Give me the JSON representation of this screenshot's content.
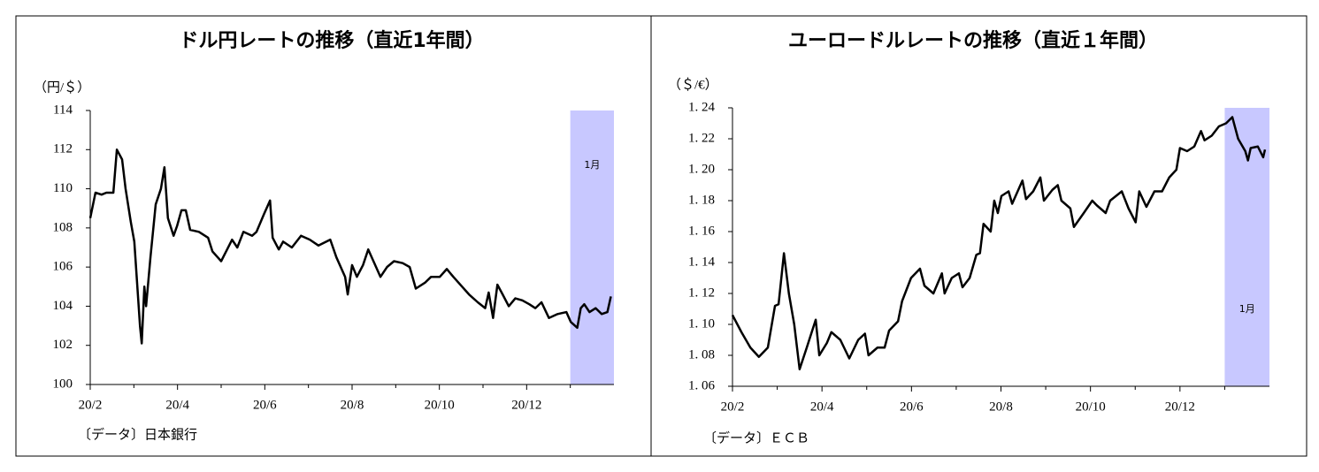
{
  "chart_data": [
    {
      "type": "line",
      "title": "ドル円レートの推移（直近1年間）",
      "y_label": "（円/＄）",
      "source": "〔データ〕日本銀行",
      "x": [
        0,
        0.12,
        0.26,
        0.37,
        0.53,
        0.61,
        0.73,
        0.81,
        0.93,
        1.01,
        1.14,
        1.18,
        1.24,
        1.28,
        1.38,
        1.5,
        1.62,
        1.7,
        1.78,
        1.91,
        1.99,
        2.09,
        2.19,
        2.29,
        2.49,
        2.7,
        2.8,
        3,
        3.25,
        3.37,
        3.51,
        3.71,
        3.81,
        3.98,
        4.12,
        4.18,
        4.32,
        4.42,
        4.62,
        4.83,
        5.03,
        5.23,
        5.5,
        5.64,
        5.84,
        5.9,
        6,
        6.11,
        6.25,
        6.37,
        6.51,
        6.65,
        6.8,
        6.96,
        7.16,
        7.32,
        7.46,
        7.67,
        7.81,
        8.01,
        8.17,
        8.32,
        8.48,
        8.68,
        8.88,
        9.05,
        9.13,
        9.23,
        9.33,
        9.45,
        9.59,
        9.74,
        9.9,
        10.06,
        10.2,
        10.34,
        10.51,
        10.71,
        10.91,
        11.01,
        11.16,
        11.24,
        11.32,
        11.44,
        11.58,
        11.72,
        11.85,
        11.93
      ],
      "series": [
        {
          "color": "#000000",
          "values": [
            108.5,
            109.8,
            109.7,
            109.8,
            109.8,
            112,
            111.5,
            110,
            108.3,
            107.3,
            103,
            102.1,
            105,
            104,
            106.5,
            109.2,
            110,
            111.1,
            108.5,
            107.6,
            108.1,
            108.9,
            108.9,
            107.9,
            107.8,
            107.5,
            106.8,
            106.3,
            107.4,
            107,
            107.8,
            107.6,
            107.8,
            108.7,
            109.4,
            107.5,
            106.9,
            107.3,
            107,
            107.6,
            107.4,
            107.1,
            107.4,
            106.5,
            105.5,
            104.6,
            106.1,
            105.5,
            106.1,
            106.9,
            106.2,
            105.5,
            106,
            106.3,
            106.2,
            106,
            104.9,
            105.2,
            105.5,
            105.5,
            105.9,
            105.5,
            105.1,
            104.6,
            104.2,
            103.9,
            104.7,
            103.4,
            105.1,
            104.6,
            104,
            104.4,
            104.3,
            104.1,
            103.9,
            104.2,
            103.4,
            103.6,
            103.7,
            103.2,
            102.9,
            103.9,
            104.1,
            103.7,
            103.9,
            103.6,
            103.7,
            104.5
          ]
        }
      ],
      "xlim": [
        0,
        12
      ],
      "xticks": [
        {
          "value": 0,
          "label": "20/2"
        },
        {
          "value": 2,
          "label": "20/4"
        },
        {
          "value": 4,
          "label": "20/6"
        },
        {
          "value": 6,
          "label": "20/8"
        },
        {
          "value": 8,
          "label": "20/10"
        },
        {
          "value": 10,
          "label": "20/12"
        }
      ],
      "minor_xticks": [
        1,
        3,
        5,
        7,
        9,
        11
      ],
      "ylim": [
        100,
        114
      ],
      "yticks": [
        100,
        102,
        104,
        106,
        108,
        110,
        112,
        114
      ],
      "highlight": {
        "x": [
          11,
          12
        ],
        "label": "1月",
        "color": "#c8c8ff"
      }
    },
    {
      "type": "line",
      "title": "ユーロードルレートの推移（直近１年間）",
      "y_label": "（＄/€）",
      "source": "〔データ〕ＥＣＢ",
      "x": [
        0,
        0.2,
        0.4,
        0.59,
        0.79,
        0.95,
        1.03,
        1.15,
        1.26,
        1.38,
        1.5,
        1.66,
        1.86,
        1.94,
        2.11,
        2.21,
        2.41,
        2.61,
        2.81,
        2.96,
        3.04,
        3.24,
        3.4,
        3.5,
        3.7,
        3.79,
        3.99,
        4.19,
        4.29,
        4.49,
        4.68,
        4.74,
        4.9,
        5.06,
        5.14,
        5.3,
        5.45,
        5.53,
        5.61,
        5.77,
        5.85,
        5.93,
        6.01,
        6.17,
        6.25,
        6.48,
        6.56,
        6.72,
        6.88,
        6.96,
        7.15,
        7.27,
        7.35,
        7.55,
        7.63,
        7.85,
        8.04,
        8.14,
        8.34,
        8.44,
        8.7,
        8.85,
        9.01,
        9.09,
        9.25,
        9.43,
        9.6,
        9.76,
        9.92,
        10,
        10.16,
        10.32,
        10.47,
        10.55,
        10.71,
        10.87,
        11.03,
        11.17,
        11.3,
        11.46,
        11.52,
        11.58,
        11.74,
        11.86,
        11.9
      ],
      "series": [
        {
          "color": "#000000",
          "values": [
            1.106,
            1.095,
            1.085,
            1.079,
            1.085,
            1.112,
            1.113,
            1.146,
            1.12,
            1.1,
            1.071,
            1.085,
            1.103,
            1.08,
            1.088,
            1.095,
            1.09,
            1.078,
            1.09,
            1.094,
            1.08,
            1.085,
            1.085,
            1.096,
            1.102,
            1.115,
            1.13,
            1.136,
            1.125,
            1.12,
            1.133,
            1.12,
            1.13,
            1.133,
            1.124,
            1.13,
            1.145,
            1.146,
            1.165,
            1.16,
            1.18,
            1.172,
            1.183,
            1.186,
            1.178,
            1.193,
            1.181,
            1.186,
            1.195,
            1.18,
            1.187,
            1.19,
            1.18,
            1.175,
            1.163,
            1.172,
            1.18,
            1.177,
            1.172,
            1.18,
            1.186,
            1.175,
            1.166,
            1.186,
            1.176,
            1.186,
            1.186,
            1.195,
            1.2,
            1.214,
            1.212,
            1.215,
            1.225,
            1.219,
            1.222,
            1.228,
            1.23,
            1.234,
            1.22,
            1.212,
            1.206,
            1.214,
            1.215,
            1.208,
            1.213
          ]
        }
      ],
      "xlim": [
        0,
        12
      ],
      "xticks": [
        {
          "value": 0,
          "label": "20/2"
        },
        {
          "value": 2,
          "label": "20/4"
        },
        {
          "value": 4,
          "label": "20/6"
        },
        {
          "value": 6,
          "label": "20/8"
        },
        {
          "value": 8,
          "label": "20/10"
        },
        {
          "value": 10,
          "label": "20/12"
        }
      ],
      "minor_xticks": [
        1,
        3,
        5,
        7,
        9,
        11
      ],
      "ylim": [
        1.06,
        1.24
      ],
      "yticks": [
        {
          "value": 1.06,
          "label": "1. 06"
        },
        {
          "value": 1.08,
          "label": "1. 08"
        },
        {
          "value": 1.1,
          "label": "1. 10"
        },
        {
          "value": 1.12,
          "label": "1. 12"
        },
        {
          "value": 1.14,
          "label": "1. 14"
        },
        {
          "value": 1.16,
          "label": "1. 16"
        },
        {
          "value": 1.18,
          "label": "1. 18"
        },
        {
          "value": 1.2,
          "label": "1. 20"
        },
        {
          "value": 1.22,
          "label": "1. 22"
        },
        {
          "value": 1.24,
          "label": "1. 24"
        }
      ],
      "highlight": {
        "x": [
          11,
          12
        ],
        "label": "1月",
        "color": "#c8c8ff"
      }
    }
  ]
}
